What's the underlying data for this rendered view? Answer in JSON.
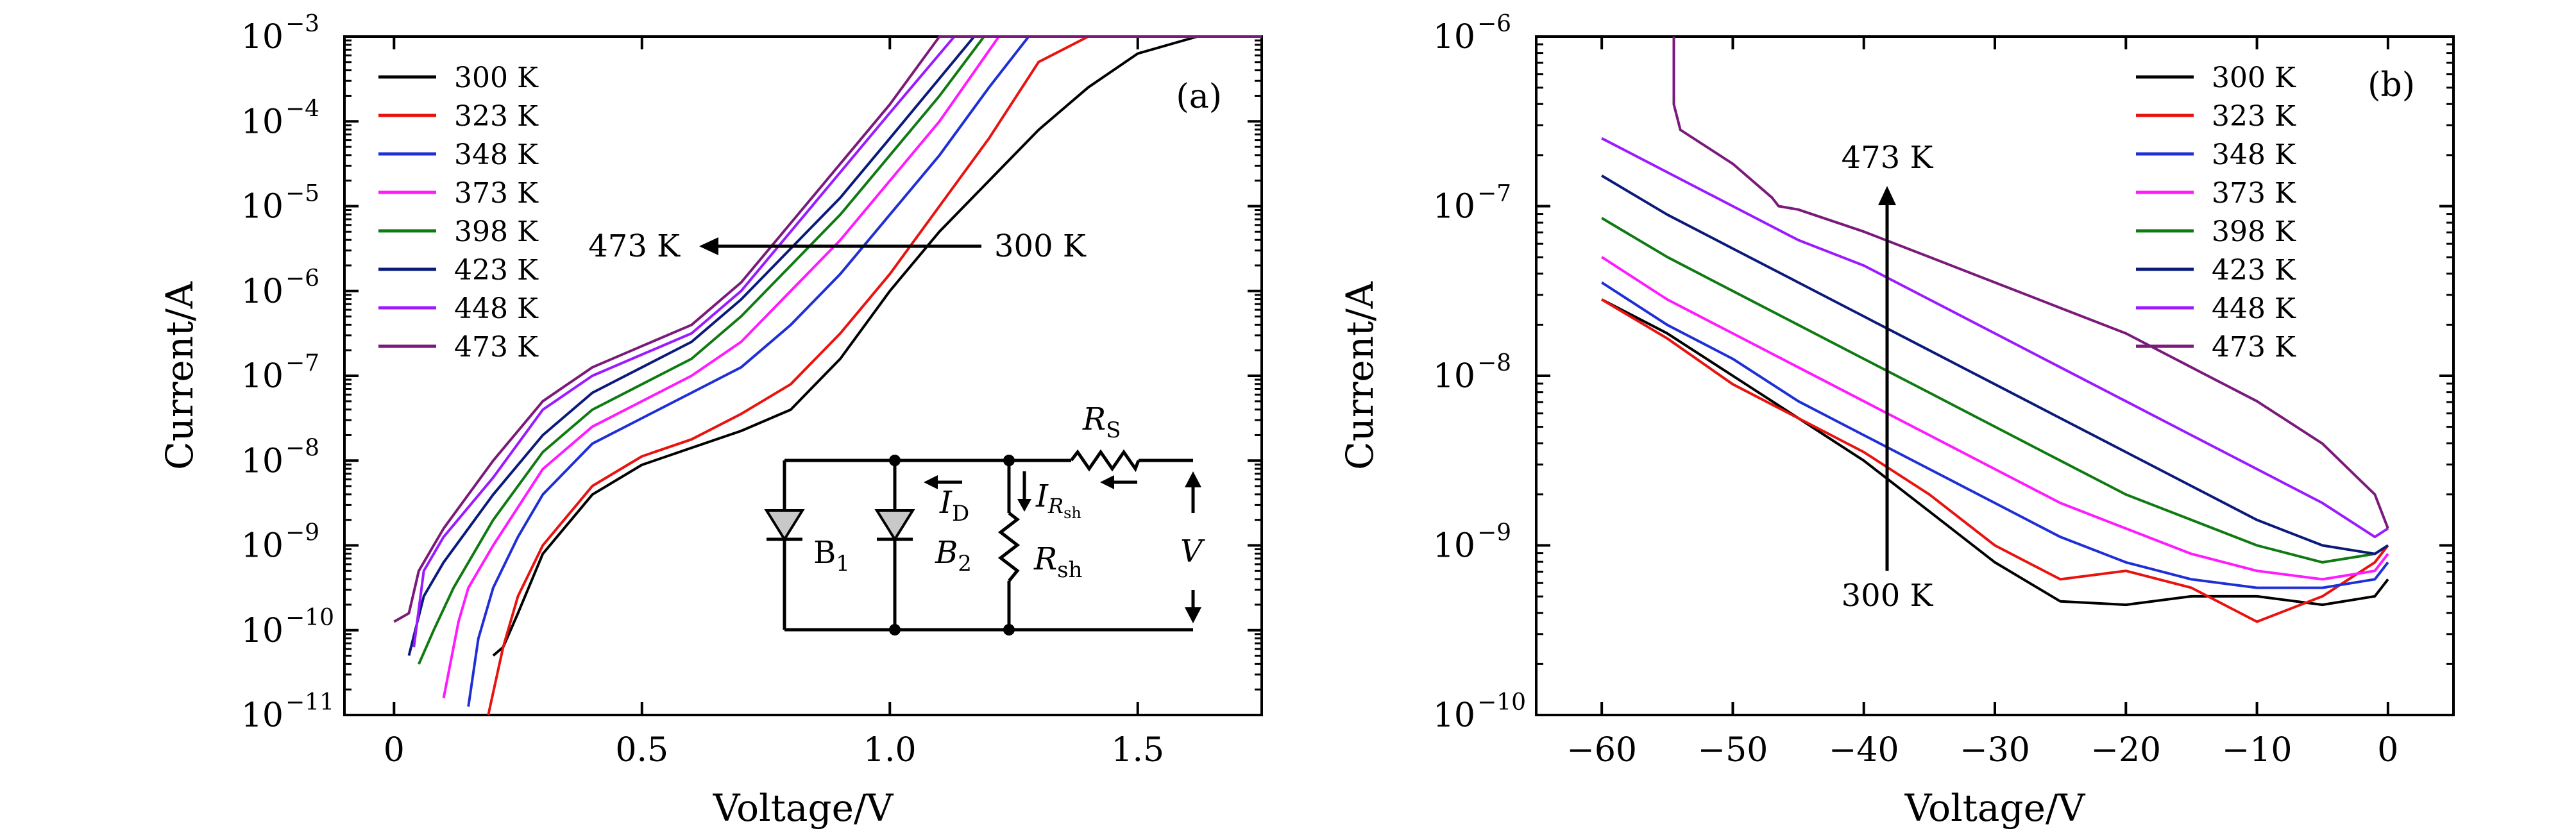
{
  "colors": {
    "300 K": "#000000",
    "323 K": "#e8130f",
    "348 K": "#1f2fd6",
    "373 K": "#ff1aff",
    "398 K": "#0f7a12",
    "423 K": "#0a1a7a",
    "448 K": "#9b1aff",
    "473 K": "#7a1a7a"
  },
  "chart_data": [
    {
      "panel": "(a)",
      "type": "line",
      "xlabel": "Voltage/V",
      "ylabel": "Current/A",
      "xlim": [
        -0.1,
        1.75
      ],
      "ylim_log10": [
        -11,
        -3
      ],
      "y_scale": "log",
      "x_ticks": [
        0,
        0.5,
        1.0,
        1.5
      ],
      "x_tick_labels": [
        "0",
        "0.5",
        "1.0",
        "1.5"
      ],
      "y_ticks_exp": [
        -11,
        -10,
        -9,
        -8,
        -7,
        -6,
        -5,
        -4,
        -3
      ],
      "y_tick_labels": [
        "10",
        "10",
        "10",
        "10",
        "10",
        "10",
        "10",
        "10",
        "10"
      ],
      "y_tick_exps": [
        "−11",
        "−10",
        "−9",
        "−8",
        "−7",
        "−6",
        "−5",
        "−4",
        "−3"
      ],
      "legend": "top-left",
      "series": [
        {
          "name": "300 K",
          "x": [
            0.2,
            0.22,
            0.25,
            0.3,
            0.4,
            0.5,
            0.6,
            0.7,
            0.8,
            0.85,
            0.9,
            1.0,
            1.1,
            1.2,
            1.3,
            1.4,
            1.5,
            1.62,
            1.75
          ],
          "log10y": [
            -10.3,
            -10.2,
            -9.8,
            -9.1,
            -8.4,
            -8.05,
            -7.85,
            -7.65,
            -7.4,
            -7.1,
            -6.8,
            -6.0,
            -5.3,
            -4.7,
            -4.1,
            -3.6,
            -3.2,
            -3.0,
            -3.0
          ]
        },
        {
          "name": "323 K",
          "x": [
            0.19,
            0.22,
            0.25,
            0.3,
            0.4,
            0.5,
            0.6,
            0.7,
            0.8,
            0.9,
            1.0,
            1.1,
            1.2,
            1.3,
            1.4,
            1.75
          ],
          "log10y": [
            -11.0,
            -10.2,
            -9.6,
            -9.0,
            -8.3,
            -7.95,
            -7.75,
            -7.45,
            -7.1,
            -6.5,
            -5.8,
            -5.0,
            -4.2,
            -3.3,
            -3.0,
            -3.0
          ]
        },
        {
          "name": "348 K",
          "x": [
            0.15,
            0.17,
            0.2,
            0.25,
            0.3,
            0.4,
            0.5,
            0.6,
            0.7,
            0.8,
            0.9,
            1.0,
            1.1,
            1.2,
            1.28,
            1.75
          ],
          "log10y": [
            -10.9,
            -10.1,
            -9.5,
            -8.9,
            -8.4,
            -7.8,
            -7.5,
            -7.2,
            -6.9,
            -6.4,
            -5.8,
            -5.1,
            -4.4,
            -3.6,
            -3.0,
            -3.0
          ]
        },
        {
          "name": "373 K",
          "x": [
            0.1,
            0.13,
            0.15,
            0.2,
            0.3,
            0.4,
            0.5,
            0.6,
            0.7,
            0.8,
            0.9,
            1.0,
            1.1,
            1.22,
            1.75
          ],
          "log10y": [
            -10.8,
            -9.9,
            -9.5,
            -9.0,
            -8.1,
            -7.6,
            -7.3,
            -7.0,
            -6.6,
            -6.0,
            -5.4,
            -4.7,
            -4.0,
            -3.0,
            -3.0
          ]
        },
        {
          "name": "398 K",
          "x": [
            0.05,
            0.08,
            0.12,
            0.2,
            0.3,
            0.4,
            0.5,
            0.6,
            0.7,
            0.8,
            0.9,
            1.0,
            1.1,
            1.19,
            1.75
          ],
          "log10y": [
            -10.4,
            -10.0,
            -9.5,
            -8.7,
            -7.9,
            -7.4,
            -7.1,
            -6.8,
            -6.3,
            -5.7,
            -5.1,
            -4.4,
            -3.7,
            -3.0,
            -3.0
          ]
        },
        {
          "name": "423 K",
          "x": [
            0.03,
            0.06,
            0.1,
            0.2,
            0.3,
            0.4,
            0.5,
            0.6,
            0.7,
            0.8,
            0.9,
            1.0,
            1.17,
            1.75
          ],
          "log10y": [
            -10.3,
            -9.6,
            -9.2,
            -8.4,
            -7.7,
            -7.2,
            -6.9,
            -6.6,
            -6.1,
            -5.5,
            -4.9,
            -4.2,
            -3.0,
            -3.0
          ]
        },
        {
          "name": "448 K",
          "x": [
            0.04,
            0.06,
            0.1,
            0.2,
            0.3,
            0.4,
            0.5,
            0.6,
            0.7,
            0.8,
            0.9,
            1.0,
            1.13,
            1.75
          ],
          "log10y": [
            -10.2,
            -9.3,
            -8.9,
            -8.2,
            -7.4,
            -7.0,
            -6.75,
            -6.5,
            -6.0,
            -5.3,
            -4.6,
            -3.9,
            -3.0,
            -3.0
          ]
        },
        {
          "name": "473 K",
          "x": [
            0.0,
            0.03,
            0.05,
            0.08,
            0.1,
            0.2,
            0.3,
            0.4,
            0.5,
            0.6,
            0.7,
            0.8,
            0.9,
            1.0,
            1.1,
            1.75
          ],
          "log10y": [
            -9.9,
            -9.8,
            -9.3,
            -9.0,
            -8.8,
            -8.0,
            -7.3,
            -6.9,
            -6.65,
            -6.4,
            -5.9,
            -5.2,
            -4.5,
            -3.8,
            -3.0,
            -3.0
          ]
        }
      ],
      "annotations": {
        "left": "473 K",
        "right": "300 K"
      },
      "circuit": {
        "rs": "R",
        "rs_sub": "S",
        "id": "I",
        "id_sub": "D",
        "irsh": "I",
        "irsh_sub": "R",
        "irsh_subsub": "sh",
        "b1": "B",
        "b1_sub": "1",
        "b2": "B",
        "b2_sub": "2",
        "rsh": "R",
        "rsh_sub": "sh",
        "v": "V"
      }
    },
    {
      "panel": "(b)",
      "type": "line",
      "xlabel": "Voltage/V",
      "ylabel": "Current/A",
      "xlim": [
        -65,
        5
      ],
      "ylim_log10": [
        -10,
        -6
      ],
      "y_scale": "log",
      "x_ticks": [
        -60,
        -50,
        -40,
        -30,
        -20,
        -10,
        0
      ],
      "x_tick_labels": [
        "−60",
        "−50",
        "−40",
        "−30",
        "−20",
        "−10",
        "0"
      ],
      "y_ticks_exp": [
        -10,
        -9,
        -8,
        -7,
        -6
      ],
      "y_tick_labels": [
        "10",
        "10",
        "10",
        "10",
        "10"
      ],
      "y_tick_exps": [
        "−10",
        "−9",
        "−8",
        "−7",
        "−6"
      ],
      "legend": "top-right",
      "series": [
        {
          "name": "300 K",
          "x": [
            -60,
            -55,
            -50,
            -45,
            -40,
            -35,
            -30,
            -25,
            -20,
            -15,
            -10,
            -5,
            -1,
            0
          ],
          "log10y": [
            -7.55,
            -7.75,
            -8.0,
            -8.25,
            -8.5,
            -8.8,
            -9.1,
            -9.33,
            -9.35,
            -9.3,
            -9.3,
            -9.35,
            -9.3,
            -9.2
          ]
        },
        {
          "name": "323 K",
          "x": [
            -60,
            -55,
            -50,
            -45,
            -40,
            -35,
            -30,
            -25,
            -20,
            -15,
            -10,
            -5,
            -1,
            0
          ],
          "log10y": [
            -7.55,
            -7.78,
            -8.05,
            -8.25,
            -8.45,
            -8.7,
            -9.0,
            -9.2,
            -9.15,
            -9.25,
            -9.45,
            -9.3,
            -9.1,
            -9.0
          ]
        },
        {
          "name": "348 K",
          "x": [
            -60,
            -55,
            -50,
            -45,
            -40,
            -35,
            -30,
            -25,
            -20,
            -15,
            -10,
            -5,
            -1,
            0
          ],
          "log10y": [
            -7.45,
            -7.7,
            -7.9,
            -8.15,
            -8.35,
            -8.55,
            -8.75,
            -8.95,
            -9.1,
            -9.2,
            -9.25,
            -9.25,
            -9.2,
            -9.1
          ]
        },
        {
          "name": "373 K",
          "x": [
            -60,
            -55,
            -50,
            -45,
            -40,
            -35,
            -30,
            -25,
            -20,
            -15,
            -10,
            -5,
            -1,
            0
          ],
          "log10y": [
            -7.3,
            -7.55,
            -7.75,
            -7.95,
            -8.15,
            -8.35,
            -8.55,
            -8.75,
            -8.9,
            -9.05,
            -9.15,
            -9.2,
            -9.15,
            -9.05
          ]
        },
        {
          "name": "398 K",
          "x": [
            -60,
            -55,
            -50,
            -45,
            -40,
            -35,
            -30,
            -25,
            -20,
            -15,
            -10,
            -5,
            -1,
            0
          ],
          "log10y": [
            -7.07,
            -7.3,
            -7.5,
            -7.7,
            -7.9,
            -8.1,
            -8.3,
            -8.5,
            -8.7,
            -8.85,
            -9.0,
            -9.1,
            -9.05,
            -9.0
          ]
        },
        {
          "name": "423 K",
          "x": [
            -60,
            -55,
            -50,
            -45,
            -40,
            -35,
            -30,
            -25,
            -20,
            -15,
            -10,
            -5,
            -1,
            0
          ],
          "log10y": [
            -6.82,
            -7.05,
            -7.25,
            -7.45,
            -7.65,
            -7.85,
            -8.05,
            -8.25,
            -8.45,
            -8.65,
            -8.85,
            -9.0,
            -9.05,
            -9.0
          ]
        },
        {
          "name": "448 K",
          "x": [
            -60,
            -55,
            -50,
            -45,
            -40,
            -35,
            -30,
            -25,
            -20,
            -15,
            -10,
            -5,
            -1,
            0
          ],
          "log10y": [
            -6.6,
            -6.8,
            -7.0,
            -7.2,
            -7.35,
            -7.55,
            -7.75,
            -7.95,
            -8.15,
            -8.35,
            -8.55,
            -8.75,
            -8.95,
            -8.9
          ]
        },
        {
          "name": "473 K",
          "x": [
            -54.5,
            -54.5,
            -54,
            -50,
            -47,
            -46.5,
            -45,
            -40,
            -35,
            -30,
            -25,
            -20,
            -15,
            -10,
            -5,
            -1,
            0
          ],
          "log10y": [
            -6.0,
            -6.4,
            -6.55,
            -6.75,
            -6.95,
            -7.0,
            -7.02,
            -7.15,
            -7.3,
            -7.45,
            -7.6,
            -7.75,
            -7.95,
            -8.15,
            -8.4,
            -8.7,
            -8.9
          ]
        }
      ],
      "annotations": {
        "top": "473 K",
        "bottom": "300 K"
      }
    }
  ]
}
